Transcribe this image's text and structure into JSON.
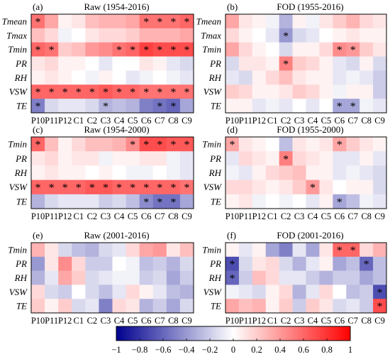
{
  "chart_data": [
    {
      "type": "heatmap",
      "panel_label": "(a)",
      "title": "Raw (1954-2016)",
      "rows": [
        "Tmean",
        "Tmax",
        "Tmin",
        "PR",
        "RH",
        "VSW",
        "TE"
      ],
      "columns": [
        "P10",
        "P11",
        "P12",
        "C1",
        "C2",
        "C3",
        "C4",
        "C5",
        "C6",
        "C7",
        "C8",
        "C9"
      ],
      "values": [
        [
          0.55,
          0.35,
          0.05,
          0.1,
          0.25,
          0.3,
          0.3,
          0.35,
          0.55,
          0.55,
          0.55,
          0.6
        ],
        [
          0.25,
          0.15,
          -0.05,
          0.0,
          0.1,
          0.15,
          0.15,
          0.2,
          0.3,
          0.3,
          0.3,
          0.35
        ],
        [
          0.6,
          0.55,
          0.2,
          0.25,
          0.4,
          0.45,
          0.55,
          0.6,
          0.75,
          0.7,
          0.7,
          0.7
        ],
        [
          0.1,
          0.15,
          0.05,
          0.05,
          0.0,
          -0.1,
          0.0,
          0.0,
          0.1,
          0.05,
          -0.1,
          -0.15
        ],
        [
          0.05,
          0.1,
          0.05,
          0.0,
          -0.05,
          0.05,
          0.0,
          -0.1,
          -0.05,
          0.0,
          -0.05,
          -0.1
        ],
        [
          0.6,
          0.6,
          0.6,
          0.6,
          0.6,
          0.65,
          0.6,
          0.6,
          0.55,
          0.55,
          0.55,
          0.55
        ],
        [
          -0.5,
          -0.15,
          -0.1,
          -0.1,
          -0.15,
          -0.3,
          -0.25,
          -0.3,
          -0.5,
          -0.55,
          -0.6,
          -0.35
        ]
      ],
      "significant": [
        [
          "Tmean",
          "P10"
        ],
        [
          "Tmean",
          "C6"
        ],
        [
          "Tmean",
          "C7"
        ],
        [
          "Tmean",
          "C8"
        ],
        [
          "Tmean",
          "C9"
        ],
        [
          "Tmin",
          "P10"
        ],
        [
          "Tmin",
          "P11"
        ],
        [
          "Tmin",
          "C4"
        ],
        [
          "Tmin",
          "C5"
        ],
        [
          "Tmin",
          "C6"
        ],
        [
          "Tmin",
          "C7"
        ],
        [
          "Tmin",
          "C8"
        ],
        [
          "Tmin",
          "C9"
        ],
        [
          "VSW",
          "P10"
        ],
        [
          "VSW",
          "P11"
        ],
        [
          "VSW",
          "P12"
        ],
        [
          "VSW",
          "C1"
        ],
        [
          "VSW",
          "C2"
        ],
        [
          "VSW",
          "C3"
        ],
        [
          "VSW",
          "C4"
        ],
        [
          "VSW",
          "C5"
        ],
        [
          "VSW",
          "C6"
        ],
        [
          "VSW",
          "C7"
        ],
        [
          "VSW",
          "C8"
        ],
        [
          "VSW",
          "C9"
        ],
        [
          "TE",
          "P10"
        ],
        [
          "TE",
          "C3"
        ],
        [
          "TE",
          "C7"
        ],
        [
          "TE",
          "C8"
        ]
      ]
    },
    {
      "type": "heatmap",
      "panel_label": "(b)",
      "title": "FOD (1955-2016)",
      "rows": [
        "Tmean",
        "Tmax",
        "Tmin",
        "PR",
        "RH",
        "VSW",
        "TE"
      ],
      "columns": [
        "P10",
        "P11",
        "P12",
        "C1",
        "C2",
        "C3",
        "C4",
        "C5",
        "C6",
        "C7",
        "C8",
        "C9"
      ],
      "values": [
        [
          0.35,
          0.1,
          0.05,
          -0.05,
          -0.3,
          0.05,
          -0.05,
          0.1,
          0.2,
          0.3,
          0.15,
          0.1
        ],
        [
          0.15,
          0.05,
          0.0,
          -0.1,
          -0.4,
          -0.15,
          -0.1,
          0.0,
          0.05,
          0.1,
          0.05,
          0.05
        ],
        [
          0.35,
          0.15,
          0.05,
          0.0,
          -0.15,
          0.05,
          0.05,
          0.15,
          0.45,
          0.4,
          0.2,
          0.1
        ],
        [
          -0.15,
          0.1,
          0.1,
          0.05,
          0.5,
          0.2,
          0.15,
          0.05,
          -0.1,
          -0.15,
          0.05,
          -0.15
        ],
        [
          -0.1,
          -0.15,
          0.05,
          0.15,
          0.25,
          0.1,
          0.05,
          0.05,
          -0.1,
          -0.05,
          -0.1,
          -0.2
        ],
        [
          0.2,
          0.15,
          0.05,
          0.05,
          0.1,
          0.2,
          0.15,
          0.05,
          -0.05,
          0.05,
          0.05,
          -0.2
        ],
        [
          0.05,
          0.05,
          -0.1,
          -0.05,
          -0.1,
          0.0,
          -0.1,
          0.0,
          -0.35,
          -0.35,
          -0.05,
          -0.1
        ]
      ],
      "significant": [
        [
          "Tmax",
          "C2"
        ],
        [
          "Tmin",
          "C6"
        ],
        [
          "Tmin",
          "C7"
        ],
        [
          "PR",
          "C2"
        ],
        [
          "TE",
          "C6"
        ],
        [
          "TE",
          "C7"
        ]
      ]
    },
    {
      "type": "heatmap",
      "panel_label": "(c)",
      "title": "Raw (1954-2000)",
      "rows": [
        "Tmin",
        "PR",
        "RH",
        "VSW",
        "TE"
      ],
      "columns": [
        "P10",
        "P11",
        "P12",
        "C1",
        "C2",
        "C3",
        "C4",
        "C5",
        "C6",
        "C7",
        "C8",
        "C9"
      ],
      "values": [
        [
          0.6,
          0.25,
          0.05,
          0.15,
          0.25,
          0.25,
          0.3,
          0.45,
          0.7,
          0.7,
          0.65,
          0.65
        ],
        [
          0.1,
          0.15,
          0.05,
          0.1,
          0.1,
          -0.05,
          0.05,
          0.05,
          0.1,
          0.1,
          -0.05,
          -0.1
        ],
        [
          0.05,
          0.1,
          0.05,
          0.05,
          0.0,
          0.05,
          0.0,
          -0.05,
          -0.05,
          0.0,
          -0.05,
          -0.1
        ],
        [
          0.6,
          0.6,
          0.6,
          0.6,
          0.65,
          0.65,
          0.6,
          0.6,
          0.6,
          0.6,
          0.6,
          0.55
        ],
        [
          -0.3,
          -0.15,
          -0.1,
          -0.1,
          -0.1,
          -0.2,
          -0.15,
          -0.25,
          -0.45,
          -0.55,
          -0.55,
          -0.35
        ]
      ],
      "significant": [
        [
          "Tmin",
          "P10"
        ],
        [
          "Tmin",
          "C5"
        ],
        [
          "Tmin",
          "C6"
        ],
        [
          "Tmin",
          "C7"
        ],
        [
          "Tmin",
          "C8"
        ],
        [
          "Tmin",
          "C9"
        ],
        [
          "VSW",
          "P10"
        ],
        [
          "VSW",
          "P11"
        ],
        [
          "VSW",
          "P12"
        ],
        [
          "VSW",
          "C1"
        ],
        [
          "VSW",
          "C2"
        ],
        [
          "VSW",
          "C3"
        ],
        [
          "VSW",
          "C4"
        ],
        [
          "VSW",
          "C5"
        ],
        [
          "VSW",
          "C6"
        ],
        [
          "VSW",
          "C7"
        ],
        [
          "VSW",
          "C8"
        ],
        [
          "VSW",
          "C9"
        ],
        [
          "TE",
          "C6"
        ],
        [
          "TE",
          "C7"
        ],
        [
          "TE",
          "C8"
        ]
      ]
    },
    {
      "type": "heatmap",
      "panel_label": "(d)",
      "title": "FOD (1955-2000)",
      "rows": [
        "Tmin",
        "PR",
        "RH",
        "VSW",
        "TE"
      ],
      "columns": [
        "P10",
        "P11",
        "P12",
        "C1",
        "C2",
        "C3",
        "C4",
        "C5",
        "C6",
        "C7",
        "C8",
        "C9"
      ],
      "values": [
        [
          0.35,
          0.1,
          0.05,
          0.0,
          -0.25,
          0.1,
          0.05,
          0.1,
          0.35,
          0.2,
          0.1,
          0.05
        ],
        [
          -0.1,
          0.15,
          0.1,
          0.05,
          0.5,
          0.15,
          0.1,
          0.05,
          -0.1,
          -0.1,
          0.05,
          -0.1
        ],
        [
          -0.05,
          -0.1,
          0.05,
          0.15,
          0.2,
          0.25,
          0.05,
          0.05,
          -0.1,
          -0.05,
          -0.1,
          -0.15
        ],
        [
          0.15,
          0.15,
          0.1,
          0.05,
          0.1,
          0.2,
          0.4,
          0.1,
          0.0,
          0.05,
          0.05,
          -0.15
        ],
        [
          0.05,
          0.1,
          -0.05,
          0.0,
          -0.05,
          0.0,
          -0.1,
          0.05,
          -0.35,
          -0.25,
          -0.05,
          -0.1
        ]
      ],
      "significant": [
        [
          "Tmin",
          "P10"
        ],
        [
          "Tmin",
          "C6"
        ],
        [
          "PR",
          "C2"
        ],
        [
          "VSW",
          "C4"
        ],
        [
          "TE",
          "C6"
        ]
      ]
    },
    {
      "type": "heatmap",
      "panel_label": "(e)",
      "title": "Raw (2001-2016)",
      "rows": [
        "Tmin",
        "PR",
        "RH",
        "VSW",
        "TE"
      ],
      "columns": [
        "P10",
        "P11",
        "P12",
        "C1",
        "C2",
        "C3",
        "C4",
        "C5",
        "C6",
        "C7",
        "C8",
        "C9"
      ],
      "values": [
        [
          0.3,
          0.1,
          -0.15,
          -0.25,
          -0.3,
          -0.15,
          -0.1,
          0.15,
          0.35,
          0.4,
          0.1,
          0.25
        ],
        [
          -0.4,
          0.1,
          0.45,
          0.15,
          -0.2,
          -0.2,
          0.0,
          -0.05,
          -0.25,
          -0.2,
          -0.3,
          -0.15
        ],
        [
          -0.3,
          -0.1,
          0.35,
          0.2,
          -0.15,
          -0.1,
          -0.05,
          -0.05,
          -0.2,
          -0.15,
          -0.35,
          -0.2
        ],
        [
          0.15,
          -0.15,
          -0.2,
          0.0,
          -0.15,
          -0.25,
          -0.1,
          0.15,
          0.05,
          -0.1,
          -0.25,
          -0.3
        ],
        [
          0.2,
          0.05,
          0.2,
          -0.15,
          -0.1,
          -0.5,
          0.15,
          0.1,
          -0.3,
          -0.2,
          -0.35,
          -0.15
        ]
      ],
      "significant": []
    },
    {
      "type": "heatmap",
      "panel_label": "(f)",
      "title": "FOD (2001-2016)",
      "rows": [
        "Tmin",
        "PR",
        "RH",
        "VSW",
        "TE"
      ],
      "columns": [
        "P10",
        "P11",
        "P12",
        "C1",
        "C2",
        "C3",
        "C4",
        "C5",
        "C6",
        "C7",
        "C8",
        "C9"
      ],
      "values": [
        [
          0.05,
          -0.1,
          0.05,
          -0.35,
          -0.5,
          -0.1,
          -0.35,
          0.1,
          0.6,
          0.6,
          0.15,
          0.3
        ],
        [
          -0.7,
          -0.15,
          0.1,
          0.15,
          -0.15,
          -0.3,
          -0.1,
          0.05,
          -0.35,
          -0.25,
          -0.6,
          -0.25
        ],
        [
          -0.6,
          -0.2,
          0.25,
          0.15,
          -0.1,
          -0.1,
          -0.2,
          -0.3,
          -0.2,
          -0.2,
          -0.35,
          -0.25
        ],
        [
          -0.05,
          -0.1,
          -0.15,
          0.05,
          0.15,
          -0.3,
          -0.1,
          0.15,
          0.0,
          -0.25,
          -0.2,
          -0.7
        ],
        [
          0.35,
          0.25,
          0.3,
          0.05,
          0.2,
          -0.2,
          0.2,
          0.1,
          -0.15,
          -0.1,
          -0.2,
          0.7
        ]
      ],
      "significant": [
        [
          "Tmin",
          "C6"
        ],
        [
          "Tmin",
          "C7"
        ],
        [
          "PR",
          "P10"
        ],
        [
          "PR",
          "C8"
        ],
        [
          "RH",
          "P10"
        ],
        [
          "VSW",
          "C9"
        ],
        [
          "TE",
          "C9"
        ]
      ]
    }
  ],
  "colorbar": {
    "min": -1,
    "max": 1,
    "ticks": [
      -1,
      -0.8,
      -0.6,
      -0.4,
      -0.2,
      0,
      0.2,
      0.4,
      0.6,
      0.8,
      1
    ],
    "tick_labels": [
      "−1",
      "−0.8",
      "−0.6",
      "−0.4",
      "−0.2",
      "0",
      "0.2",
      "0.4",
      "0.6",
      "0.8",
      "1"
    ],
    "colors": {
      "negative": "#00008f",
      "zero": "#ffffff",
      "positive": "#ff0000"
    }
  }
}
